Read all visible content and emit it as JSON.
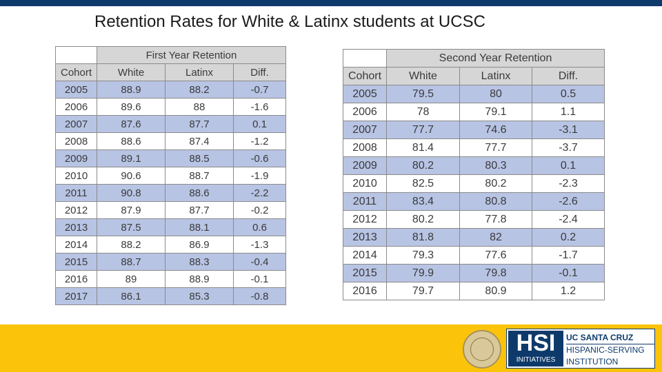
{
  "title": "Retention Rates for White & Latinx students at UCSC",
  "first_year": {
    "header": "First Year Retention",
    "columns": [
      "Cohort",
      "White",
      "Latinx",
      "Diff."
    ],
    "rows": [
      [
        "2005",
        "88.9",
        "88.2",
        "-0.7"
      ],
      [
        "2006",
        "89.6",
        "88",
        "-1.6"
      ],
      [
        "2007",
        "87.6",
        "87.7",
        "0.1"
      ],
      [
        "2008",
        "88.6",
        "87.4",
        "-1.2"
      ],
      [
        "2009",
        "89.1",
        "88.5",
        "-0.6"
      ],
      [
        "2010",
        "90.6",
        "88.7",
        "-1.9"
      ],
      [
        "2011",
        "90.8",
        "88.6",
        "-2.2"
      ],
      [
        "2012",
        "87.9",
        "87.7",
        "-0.2"
      ],
      [
        "2013",
        "87.5",
        "88.1",
        "0.6"
      ],
      [
        "2014",
        "88.2",
        "86.9",
        "-1.3"
      ],
      [
        "2015",
        "88.7",
        "88.3",
        "-0.4"
      ],
      [
        "2016",
        "89",
        "88.9",
        "-0.1"
      ],
      [
        "2017",
        "86.1",
        "85.3",
        "-0.8"
      ]
    ]
  },
  "second_year": {
    "header": "Second Year Retention",
    "columns": [
      "Cohort",
      "White",
      "Latinx",
      "Diff."
    ],
    "rows": [
      [
        "2005",
        "79.5",
        "80",
        "0.5"
      ],
      [
        "2006",
        "78",
        "79.1",
        "1.1"
      ],
      [
        "2007",
        "77.7",
        "74.6",
        "-3.1"
      ],
      [
        "2008",
        "81.4",
        "77.7",
        "-3.7"
      ],
      [
        "2009",
        "80.2",
        "80.3",
        "0.1"
      ],
      [
        "2010",
        "82.5",
        "80.2",
        "-2.3"
      ],
      [
        "2011",
        "83.4",
        "80.8",
        "-2.6"
      ],
      [
        "2012",
        "80.2",
        "77.8",
        "-2.4"
      ],
      [
        "2013",
        "81.8",
        "82",
        "0.2"
      ],
      [
        "2014",
        "79.3",
        "77.6",
        "-1.7"
      ],
      [
        "2015",
        "79.9",
        "79.8",
        "-0.1"
      ],
      [
        "2016",
        "79.7",
        "80.9",
        "1.2"
      ]
    ]
  },
  "logo": {
    "hsi": "HSI",
    "initiatives": "INITIATIVES",
    "line1": "UC SANTA CRUZ",
    "line2": "HISPANIC-SERVING",
    "line3": "INSTITUTION"
  },
  "colors": {
    "top_bar": "#0e3a6b",
    "footer": "#fcc30b",
    "row_highlight": "#b8c4e4",
    "header_gray": "#d6d6d6"
  }
}
